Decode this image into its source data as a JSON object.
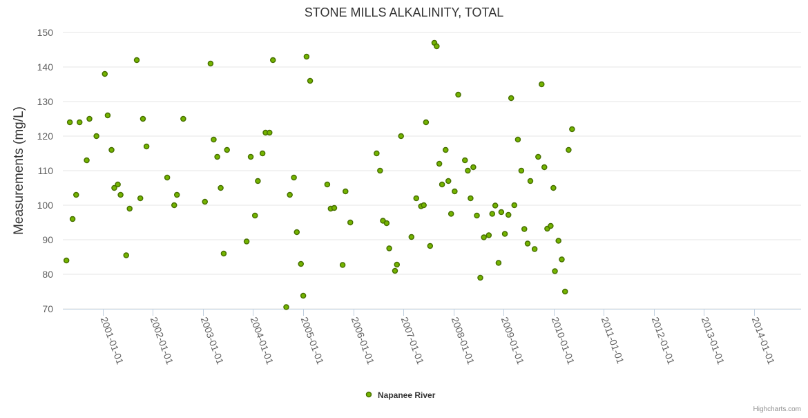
{
  "chart_data": {
    "type": "scatter",
    "title": "STONE MILLS ALKALINITY, TOTAL",
    "xlabel": "",
    "ylabel": "Measurements (mg/L)",
    "ylim": [
      70,
      150
    ],
    "yticks": [
      70,
      80,
      90,
      100,
      110,
      120,
      130,
      140,
      150
    ],
    "xticks": [
      "2001-01-01",
      "2002-01-01",
      "2003-01-01",
      "2004-01-01",
      "2005-01-01",
      "2006-01-01",
      "2007-01-01",
      "2008-01-01",
      "2009-01-01",
      "2010-01-01",
      "2011-01-01",
      "2012-01-01",
      "2013-01-01",
      "2014-01-01"
    ],
    "xlim": [
      "2000-03-15",
      "2014-12-10"
    ],
    "grid": "horizontal",
    "legend_position": "bottom-center",
    "series": [
      {
        "name": "Napanee River",
        "color": "#74b400",
        "points": [
          [
            "2000-04-10",
            84
          ],
          [
            "2000-05-05",
            124
          ],
          [
            "2000-05-25",
            96
          ],
          [
            "2000-06-20",
            103
          ],
          [
            "2000-07-15",
            124
          ],
          [
            "2000-09-05",
            113
          ],
          [
            "2000-09-25",
            125
          ],
          [
            "2000-11-15",
            120
          ],
          [
            "2001-01-15",
            138
          ],
          [
            "2001-02-05",
            126
          ],
          [
            "2001-03-05",
            116
          ],
          [
            "2001-03-25",
            105
          ],
          [
            "2001-04-20",
            106
          ],
          [
            "2001-05-10",
            103
          ],
          [
            "2001-06-20",
            85.5
          ],
          [
            "2001-07-15",
            99
          ],
          [
            "2001-09-05",
            142
          ],
          [
            "2001-10-01",
            102
          ],
          [
            "2001-10-20",
            125
          ],
          [
            "2001-11-15",
            117
          ],
          [
            "2002-04-15",
            108
          ],
          [
            "2002-06-05",
            100
          ],
          [
            "2002-06-25",
            103
          ],
          [
            "2002-08-10",
            125
          ],
          [
            "2003-01-15",
            101
          ],
          [
            "2003-02-25",
            141
          ],
          [
            "2003-03-20",
            119
          ],
          [
            "2003-04-15",
            114
          ],
          [
            "2003-05-10",
            105
          ],
          [
            "2003-06-01",
            86
          ],
          [
            "2003-06-25",
            116
          ],
          [
            "2003-11-15",
            89.5
          ],
          [
            "2003-12-15",
            114
          ],
          [
            "2004-01-15",
            97
          ],
          [
            "2004-02-05",
            107
          ],
          [
            "2004-03-10",
            115
          ],
          [
            "2004-04-01",
            121
          ],
          [
            "2004-04-30",
            121
          ],
          [
            "2004-05-25",
            142
          ],
          [
            "2004-08-30",
            70.5
          ],
          [
            "2004-09-25",
            103
          ],
          [
            "2004-10-25",
            108
          ],
          [
            "2004-11-15",
            92.2
          ],
          [
            "2004-12-15",
            83
          ],
          [
            "2005-01-01",
            73.8
          ],
          [
            "2005-01-25",
            143
          ],
          [
            "2005-02-20",
            136
          ],
          [
            "2005-06-25",
            106
          ],
          [
            "2005-07-20",
            99
          ],
          [
            "2005-08-15",
            99.2
          ],
          [
            "2005-10-15",
            82.7
          ],
          [
            "2005-11-05",
            104
          ],
          [
            "2005-12-10",
            95
          ],
          [
            "2006-06-20",
            115
          ],
          [
            "2006-07-15",
            110
          ],
          [
            "2006-08-05",
            95.5
          ],
          [
            "2006-09-01",
            94.8
          ],
          [
            "2006-09-20",
            87.5
          ],
          [
            "2006-11-01",
            81
          ],
          [
            "2006-11-15",
            82.8
          ],
          [
            "2006-12-15",
            120
          ],
          [
            "2007-03-01",
            90.8
          ],
          [
            "2007-04-05",
            102
          ],
          [
            "2007-05-10",
            99.7
          ],
          [
            "2007-05-30",
            100
          ],
          [
            "2007-06-15",
            124
          ],
          [
            "2007-07-15",
            88.2
          ],
          [
            "2007-08-15",
            147
          ],
          [
            "2007-09-01",
            146
          ],
          [
            "2007-09-20",
            112
          ],
          [
            "2007-10-10",
            106
          ],
          [
            "2007-11-05",
            116
          ],
          [
            "2007-11-25",
            107
          ],
          [
            "2007-12-15",
            97.5
          ],
          [
            "2008-01-10",
            104
          ],
          [
            "2008-02-05",
            132
          ],
          [
            "2008-03-25",
            113
          ],
          [
            "2008-04-15",
            110
          ],
          [
            "2008-05-05",
            102
          ],
          [
            "2008-05-25",
            111
          ],
          [
            "2008-06-20",
            97
          ],
          [
            "2008-07-15",
            79
          ],
          [
            "2008-08-10",
            90.7
          ],
          [
            "2008-09-15",
            91.3
          ],
          [
            "2008-10-10",
            97.5
          ],
          [
            "2008-11-01",
            99.9
          ],
          [
            "2008-11-25",
            83.3
          ],
          [
            "2008-12-15",
            98
          ],
          [
            "2009-01-10",
            91.7
          ],
          [
            "2009-02-05",
            97.2
          ],
          [
            "2009-02-25",
            131
          ],
          [
            "2009-03-20",
            100
          ],
          [
            "2009-04-15",
            119
          ],
          [
            "2009-05-10",
            110
          ],
          [
            "2009-06-01",
            93.1
          ],
          [
            "2009-06-25",
            88.9
          ],
          [
            "2009-07-15",
            107
          ],
          [
            "2009-08-15",
            87.3
          ],
          [
            "2009-09-10",
            114
          ],
          [
            "2009-10-05",
            135
          ],
          [
            "2009-10-25",
            111
          ],
          [
            "2009-11-15",
            93.2
          ],
          [
            "2009-12-10",
            94
          ],
          [
            "2009-12-30",
            105
          ],
          [
            "2010-01-10",
            80.9
          ],
          [
            "2010-02-05",
            89.7
          ],
          [
            "2010-03-01",
            84.3
          ],
          [
            "2010-03-25",
            75
          ],
          [
            "2010-04-20",
            116
          ],
          [
            "2010-05-15",
            122
          ]
        ]
      }
    ]
  },
  "credits": "Highcharts.com"
}
